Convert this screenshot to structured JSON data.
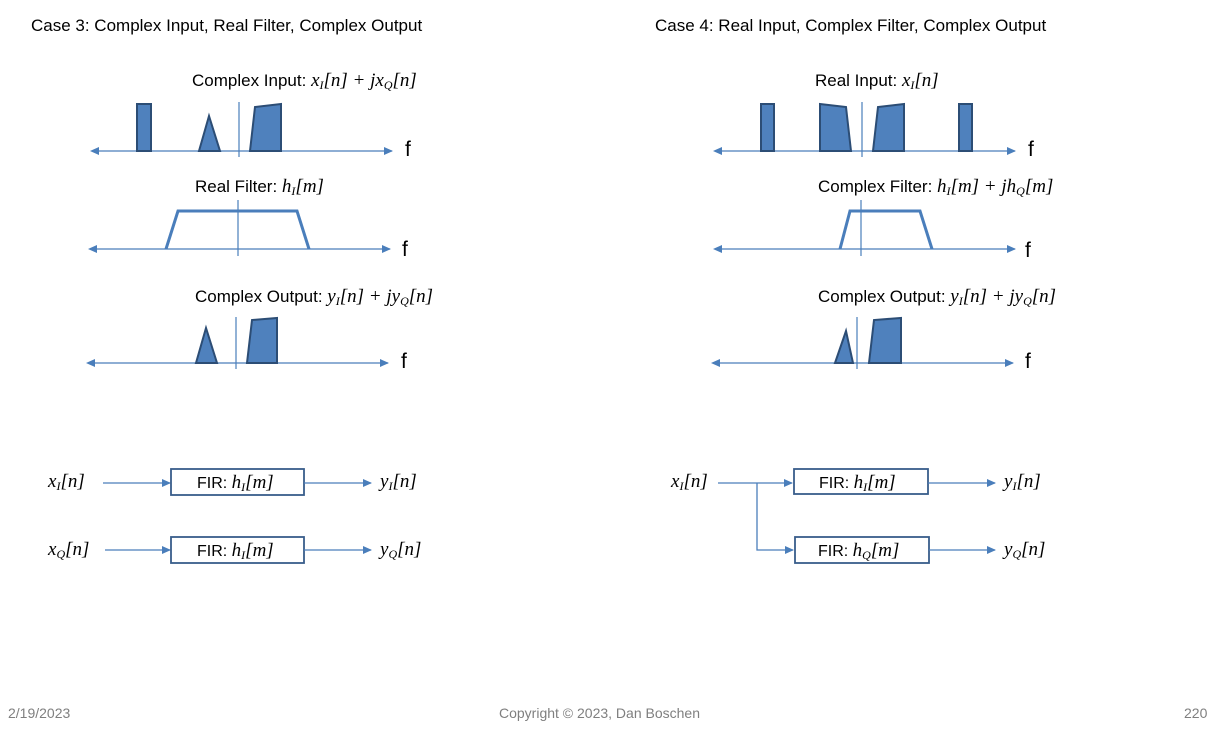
{
  "case3": {
    "title": "Case 3: Complex Input, Real Filter, Complex Output",
    "input_label": "Complex Input:",
    "input_expr": {
      "a": "x",
      "a_sub": "I",
      "b": "[n] + j",
      "c": "x",
      "c_sub": "Q",
      "d": "[n]"
    },
    "filter_label": "Real Filter:",
    "filter_expr": {
      "a": "h",
      "a_sub": "I",
      "b": "[m]"
    },
    "output_label": "Complex Output:",
    "output_expr": {
      "a": "y",
      "a_sub": "I",
      "b": "[n] + j",
      "c": "y",
      "c_sub": "Q",
      "d": "[n]"
    },
    "axis_label": "f",
    "blocks": [
      {
        "in_var": "x",
        "in_sub": "I",
        "in_idx": "[n]",
        "fir_prefix": "FIR:",
        "h": "h",
        "h_sub": "I",
        "h_idx": "[m]",
        "out_var": "y",
        "out_sub": "I",
        "out_idx": "[n]"
      },
      {
        "in_var": "x",
        "in_sub": "Q",
        "in_idx": "[n]",
        "fir_prefix": "FIR:",
        "h": "h",
        "h_sub": "I",
        "h_idx": "[m]",
        "out_var": "y",
        "out_sub": "Q",
        "out_idx": "[n]"
      }
    ]
  },
  "case4": {
    "title": "Case 4: Real Input, Complex Filter, Complex Output",
    "input_label": "Real Input:",
    "input_expr": {
      "a": "x",
      "a_sub": "I",
      "b": "[n]"
    },
    "filter_label": "Complex Filter:",
    "filter_expr": {
      "a": "h",
      "a_sub": "I",
      "b": "[m] + j",
      "c": "h",
      "c_sub": "Q",
      "d": "[m]"
    },
    "output_label": "Complex Output:",
    "output_expr": {
      "a": "y",
      "a_sub": "I",
      "b": "[n] + j",
      "c": "y",
      "c_sub": "Q",
      "d": "[n]"
    },
    "axis_label": "f",
    "input": {
      "var": "x",
      "sub": "I",
      "idx": "[n]"
    },
    "blocks": [
      {
        "fir_prefix": "FIR:",
        "h": "h",
        "h_sub": "I",
        "h_idx": "[m]",
        "out_var": "y",
        "out_sub": "I",
        "out_idx": "[n]"
      },
      {
        "fir_prefix": "FIR:",
        "h": "h",
        "h_sub": "Q",
        "h_idx": "[m]",
        "out_var": "y",
        "out_sub": "Q",
        "out_idx": "[n]"
      }
    ]
  },
  "footer": {
    "date": "2/19/2023",
    "copyright": "Copyright © 2023, Dan Boschen",
    "page": "220"
  },
  "colors": {
    "axis": "#4a7ebb",
    "shape_fill": "#4f81bd",
    "shape_stroke": "#2c4d75",
    "filter_line": "#4a7ebb",
    "fir_box": "#385d8a"
  }
}
